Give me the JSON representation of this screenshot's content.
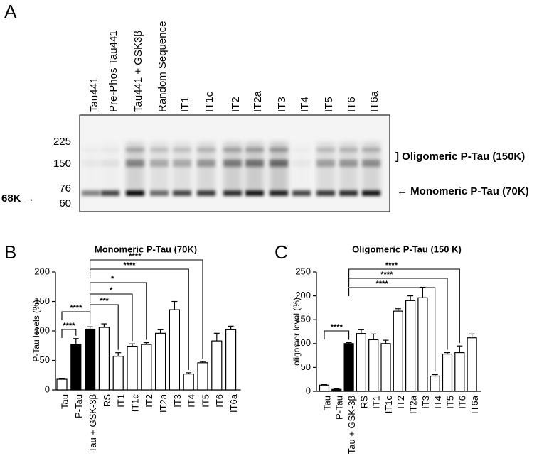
{
  "panel_a": {
    "letter": "A",
    "lanes": [
      "Tau441",
      "Pre-Phos Tau441",
      "Tau441 + GSK3β",
      "Random Sequence",
      "IT1",
      "IT1c",
      "IT2",
      "IT2a",
      "IT3",
      "IT4",
      "IT5",
      "IT6",
      "IT6a"
    ],
    "markers": [
      "225",
      "150",
      "76",
      "60"
    ],
    "left_label": "68K →",
    "oligomer_label": "] Oligomeric P-Tau (150K)",
    "monomer_label": "← Monomeric P-Tau (70K)"
  },
  "chart_data": [
    {
      "type": "bar",
      "letter": "B",
      "title": "Monomeric P-Tau (70K)",
      "y_label": "P-Tau levels (%)",
      "categories": [
        "Tau",
        "P-Tau",
        "Tau + GSK-3β",
        "RS",
        "IT1",
        "IT1c",
        "IT2",
        "IT2a",
        "IT3",
        "IT4",
        "IT5",
        "IT6",
        "IT6a"
      ],
      "values": [
        18,
        77,
        103,
        106,
        57,
        74,
        77,
        96,
        136,
        27,
        46,
        83,
        102
      ],
      "errors": [
        1,
        10,
        4,
        6,
        6,
        4,
        3,
        6,
        14,
        2,
        2,
        13,
        6
      ],
      "colors": [
        "#ffffff",
        "#000000",
        "#000000",
        "#ffffff",
        "#ffffff",
        "#ffffff",
        "#ffffff",
        "#ffffff",
        "#ffffff",
        "#ffffff",
        "#ffffff",
        "#ffffff",
        "#ffffff"
      ],
      "ylim": [
        0,
        200
      ],
      "yticks": [
        0,
        50,
        100,
        150,
        200
      ],
      "comparisons": [
        {
          "label": "****"
        },
        {
          "label": "****"
        },
        {
          "label": "***"
        },
        {
          "label": "*"
        },
        {
          "label": "*"
        },
        {
          "label": "****"
        },
        {
          "label": "****"
        }
      ]
    },
    {
      "type": "bar",
      "letter": "C",
      "title": "Oligomeric P-Tau (150 K)",
      "y_label": "oligomer level (%)",
      "categories": [
        "Tau",
        "P-Tau",
        "Tau + GSK-3β",
        "RS",
        "IT1",
        "IT1c",
        "IT2",
        "IT2a",
        "IT3",
        "IT4",
        "IT5",
        "IT6",
        "IT6a"
      ],
      "values": [
        13,
        4,
        100,
        121,
        108,
        100,
        168,
        190,
        196,
        32,
        78,
        81,
        112
      ],
      "errors": [
        1,
        1,
        2,
        8,
        12,
        7,
        5,
        10,
        22,
        3,
        3,
        14,
        8
      ],
      "colors": [
        "#ffffff",
        "#000000",
        "#000000",
        "#ffffff",
        "#ffffff",
        "#ffffff",
        "#ffffff",
        "#ffffff",
        "#ffffff",
        "#ffffff",
        "#ffffff",
        "#ffffff",
        "#ffffff"
      ],
      "ylim": [
        0,
        250
      ],
      "yticks": [
        0,
        50,
        100,
        150,
        200,
        250
      ],
      "comparisons": [
        {
          "label": "****"
        },
        {
          "label": "****"
        },
        {
          "label": "****"
        },
        {
          "label": "****"
        }
      ]
    }
  ]
}
